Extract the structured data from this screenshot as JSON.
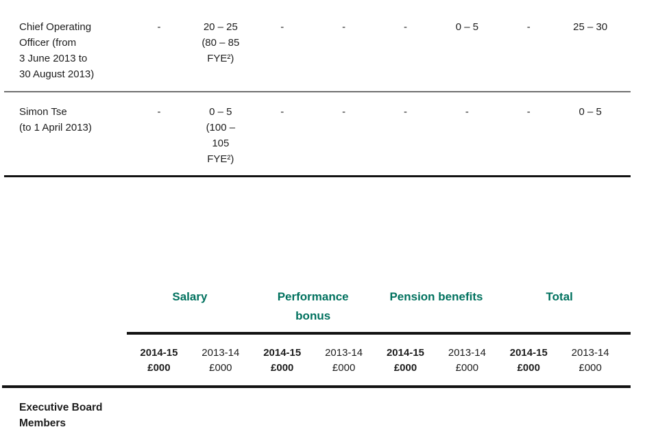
{
  "page": {
    "background": "#ffffff",
    "text_color": "#1c1c1c",
    "accent_teal": "#00715e",
    "rule_color": "#121212"
  },
  "top_table": {
    "rows": [
      {
        "label": "Chief Operating\nOfficer (from\n3 June 2013 to\n30 August 2013)",
        "cells": [
          "-",
          "20 – 25\n(80 – 85\nFYE²)",
          "-",
          "-",
          "-",
          "0 – 5",
          "-",
          "25 – 30"
        ]
      },
      {
        "label": "Simon Tse\n(to 1 April 2013)",
        "cells": [
          "-",
          "0 – 5\n(100 –\n105\nFYE²)",
          "-",
          "-",
          "-",
          "-",
          "-",
          "0 – 5"
        ]
      }
    ]
  },
  "lower_table": {
    "groups": [
      {
        "label": "Salary"
      },
      {
        "label": "Performance\nbonus"
      },
      {
        "label": "Pension benefits"
      },
      {
        "label": "Total"
      }
    ],
    "column_headers": [
      {
        "text": "2014-15\n£000"
      },
      {
        "text": "2013-14\n£000"
      },
      {
        "text": "2014-15\n£000"
      },
      {
        "text": "2013-14\n£000"
      },
      {
        "text": "2014-15\n£000"
      },
      {
        "text": "2013-14\n£000"
      },
      {
        "text": "2014-15\n£000"
      },
      {
        "text": "2013-14\n£000"
      }
    ],
    "section_label": "Executive Board\nMembers"
  }
}
